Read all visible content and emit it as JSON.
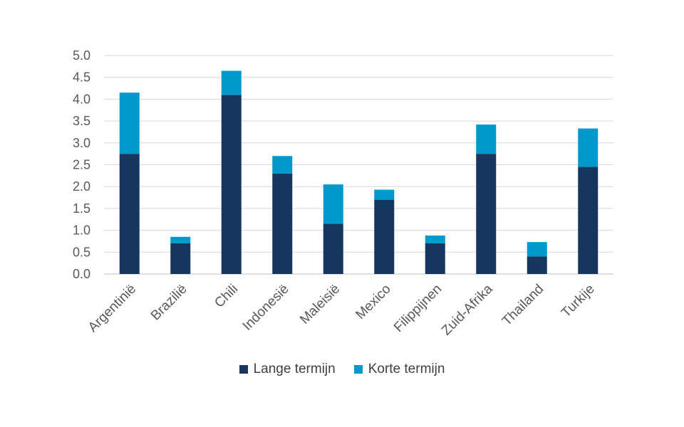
{
  "chart_data": {
    "type": "bar",
    "stacked": true,
    "categories": [
      "Argentinië",
      "Brazilië",
      "Chili",
      "Indonesië",
      "Maleisië",
      "Mexico",
      "Filippijnen",
      "Zuid-Afrika",
      "Thailand",
      "Turkije"
    ],
    "series": [
      {
        "name": "Lange termijn",
        "color": "#17365d",
        "values": [
          2.75,
          0.7,
          4.1,
          2.3,
          1.15,
          1.7,
          0.7,
          2.75,
          0.4,
          2.45
        ]
      },
      {
        "name": "Korte termijn",
        "color": "#0099cc",
        "values": [
          1.4,
          0.15,
          0.55,
          0.4,
          0.9,
          0.23,
          0.18,
          0.67,
          0.33,
          0.88
        ]
      }
    ],
    "ylim": [
      0,
      5
    ],
    "yticks": [
      "0.0",
      "0.5",
      "1.0",
      "1.5",
      "2.0",
      "2.5",
      "3.0",
      "3.5",
      "4.0",
      "4.5",
      "5.0"
    ],
    "grid": true,
    "legend_position": "bottom"
  }
}
